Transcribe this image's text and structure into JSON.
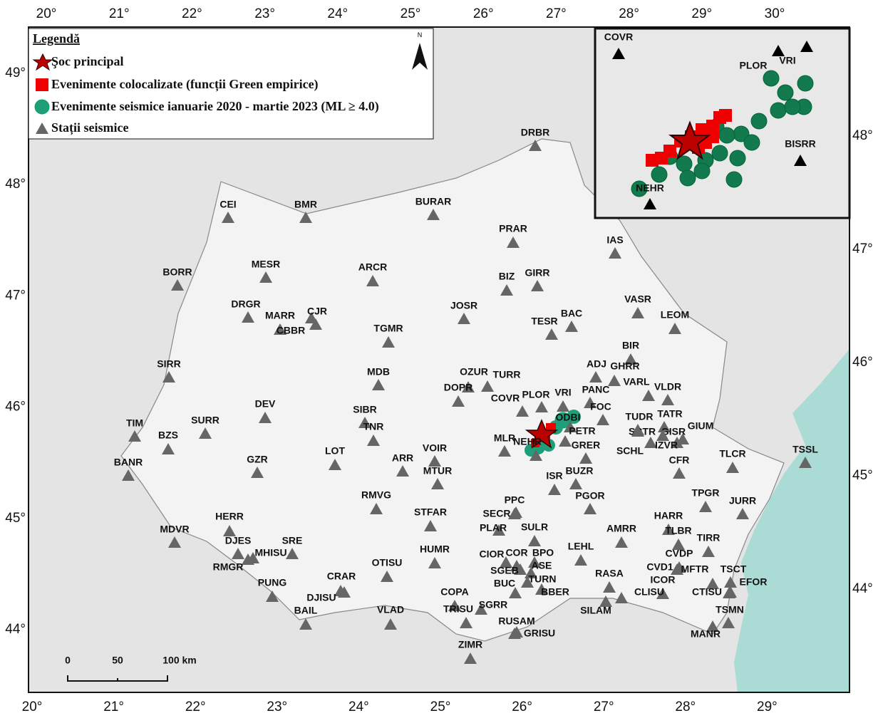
{
  "map": {
    "legend": {
      "title": "Legendă",
      "items": [
        "Şoc principal",
        "Evenimente colocalizate (funcții Green empirice)",
        "Evenimente seismice ianuarie 2020 - martie 2023 (ML ≥  4.0)",
        "Stații seismice"
      ]
    },
    "north": "N",
    "top_ticks": [
      {
        "value": 20,
        "label": "20°"
      },
      {
        "value": 21,
        "label": "21°"
      },
      {
        "value": 22,
        "label": "22°"
      },
      {
        "value": 23,
        "label": "23°"
      },
      {
        "value": 24,
        "label": "24°"
      },
      {
        "value": 25,
        "label": "25°"
      },
      {
        "value": 26,
        "label": "26°"
      },
      {
        "value": 27,
        "label": "27°"
      },
      {
        "value": 28,
        "label": "28°"
      },
      {
        "value": 29,
        "label": "29°"
      },
      {
        "value": 30,
        "label": "30°"
      }
    ],
    "bottom_ticks": [
      {
        "value": 20,
        "label": "20°"
      },
      {
        "value": 21,
        "label": "21°"
      },
      {
        "value": 22,
        "label": "22°"
      },
      {
        "value": 23,
        "label": "23°"
      },
      {
        "value": 24,
        "label": "24°"
      },
      {
        "value": 25,
        "label": "25°"
      },
      {
        "value": 26,
        "label": "26°"
      },
      {
        "value": 27,
        "label": "27°"
      },
      {
        "value": 28,
        "label": "28°"
      },
      {
        "value": 29,
        "label": "29°"
      }
    ],
    "left_ticks": [
      {
        "value": 49,
        "label": "49°"
      },
      {
        "value": 48,
        "label": "48°"
      },
      {
        "value": 47,
        "label": "47°"
      },
      {
        "value": 46,
        "label": "46°"
      },
      {
        "value": 45,
        "label": "45°"
      },
      {
        "value": 44,
        "label": "44°"
      }
    ],
    "right_ticks": [
      {
        "value": 48,
        "label": "48°"
      },
      {
        "value": 47,
        "label": "47°"
      },
      {
        "value": 46,
        "label": "46°"
      },
      {
        "value": 45,
        "label": "45°"
      },
      {
        "value": 44,
        "label": "44°"
      }
    ],
    "scale_bar": [
      "0",
      "50",
      "100 km"
    ],
    "stations": [
      "DRBR",
      "CEI",
      "BMR",
      "BURAR",
      "PRAR",
      "IAS",
      "BORR",
      "MESR",
      "ARCR",
      "BIZ",
      "GIRR",
      "VASR",
      "DRGR",
      "MARR",
      "CJR",
      "CBBR",
      "JOSR",
      "TESR",
      "BAC",
      "LEOM",
      "TGMR",
      "BIR",
      "SIRR",
      "ADJ",
      "GHRR",
      "MDB",
      "OZUR",
      "TURR",
      "DOPR",
      "PANC",
      "VARL",
      "VLDR",
      "PLOR",
      "VRI",
      "COVR",
      "DEV",
      "TIM",
      "SURR",
      "SIBR",
      "FOC",
      "TUDR",
      "TATR",
      "GIUM",
      "ODBI",
      "PETR",
      "TNR",
      "BZS",
      "MLR",
      "NEHR",
      "SCTR",
      "GISR",
      "SCHL",
      "IZVR",
      "GRER",
      "LOT",
      "VOIR",
      "CFR",
      "TLCR",
      "TSSL",
      "ARR",
      "BANR",
      "GZR",
      "MTUR",
      "ISR",
      "BUZR",
      "RMVG",
      "PGOR",
      "TPGR",
      "JURR",
      "PPC",
      "SECR",
      "STFAR",
      "HARR",
      "HERR",
      "PLAR",
      "SULR",
      "AMRR",
      "TLBR",
      "MDVR",
      "DJES",
      "SRE",
      "TIRR",
      "CIOR",
      "COR",
      "BPO",
      "LEHL",
      "CVDP",
      "MHISU",
      "HUMR",
      "RMGR",
      "OTISU",
      "ASE",
      "CVD1",
      "MFTR",
      "TSCT",
      "SGEB",
      "RASA",
      "TURN",
      "ICOR",
      "EFOR",
      "BUC",
      "PUNG",
      "CRAR",
      "DJISU",
      "CTISU",
      "BBER",
      "CLISU",
      "COPA",
      "SGRR",
      "TRISU",
      "SILAM",
      "TSMN",
      "RUSAM",
      "BAIL",
      "VLAD",
      "GRISU",
      "MANR",
      "ZIMR"
    ],
    "inset_stations": [
      "COVR",
      "VRI",
      "PLOR",
      "BISRR",
      "NEHR"
    ]
  }
}
